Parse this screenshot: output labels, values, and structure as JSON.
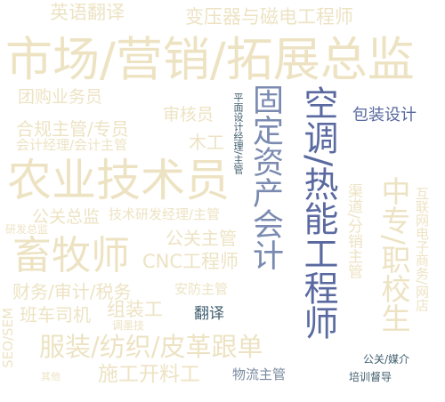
{
  "words": [
    {
      "text": "英语翻译",
      "color": "#ede3c3"
    },
    {
      "text": "变压器与磁电工程师",
      "color": "#ede3c3"
    },
    {
      "text": "市场/营销/拓展总监",
      "color": "#ede3c3"
    },
    {
      "text": "团购业务员",
      "color": "#ede3c3"
    },
    {
      "text": "审核员",
      "color": "#ede3c3"
    },
    {
      "text": "合规主管/专员",
      "color": "#ede3c3"
    },
    {
      "text": "会计经理/会计主管",
      "color": "#ede3c3"
    },
    {
      "text": "木工",
      "color": "#ede3c3"
    },
    {
      "text": "农业技术员",
      "color": "#ede3c3"
    },
    {
      "text": "公关总监",
      "color": "#ede3c3"
    },
    {
      "text": "技术研发经理/主管",
      "color": "#ede3c3"
    },
    {
      "text": "研发总监",
      "color": "#ede3c3"
    },
    {
      "text": "畜牧师",
      "color": "#ede3c3"
    },
    {
      "text": "公关主管",
      "color": "#ede3c3"
    },
    {
      "text": "CNC工程师",
      "color": "#ede3c3"
    },
    {
      "text": "财务/审计/税务",
      "color": "#ede3c3"
    },
    {
      "text": "安防主管",
      "color": "#ede3c3"
    },
    {
      "text": "班车司机",
      "color": "#ede3c3"
    },
    {
      "text": "组装工",
      "color": "#ede3c3"
    },
    {
      "text": "翻译",
      "color": "#3f5e6e"
    },
    {
      "text": "调墨技",
      "color": "#ede3c3"
    },
    {
      "text": "服装/纺织/皮革跟单",
      "color": "#ede3c3"
    },
    {
      "text": "施工开料工",
      "color": "#ede3c3"
    },
    {
      "text": "物流主管",
      "color": "#7a8aa0"
    },
    {
      "text": "其他",
      "color": "#ede3c3"
    },
    {
      "text": "包装设计",
      "color": "#5a6aa0"
    },
    {
      "text": "平面设计经理/主管",
      "color": "#3f5e6e"
    },
    {
      "text": "固定资产会计",
      "color": "#7a8ab0"
    },
    {
      "text": "空调/热能工程师",
      "color": "#5a6aa0"
    },
    {
      "text": "渠道/分销主管",
      "color": "#ede3c3"
    },
    {
      "text": "中专/职校生",
      "color": "#ede3c3"
    },
    {
      "text": "互联网电子商务/网店",
      "color": "#ede3c3"
    },
    {
      "text": "SEO/SEM",
      "color": "#ede3c3"
    },
    {
      "text": "公关/媒介",
      "color": "#3f5e6e"
    },
    {
      "text": "培训督导",
      "color": "#3f5e6e"
    }
  ]
}
